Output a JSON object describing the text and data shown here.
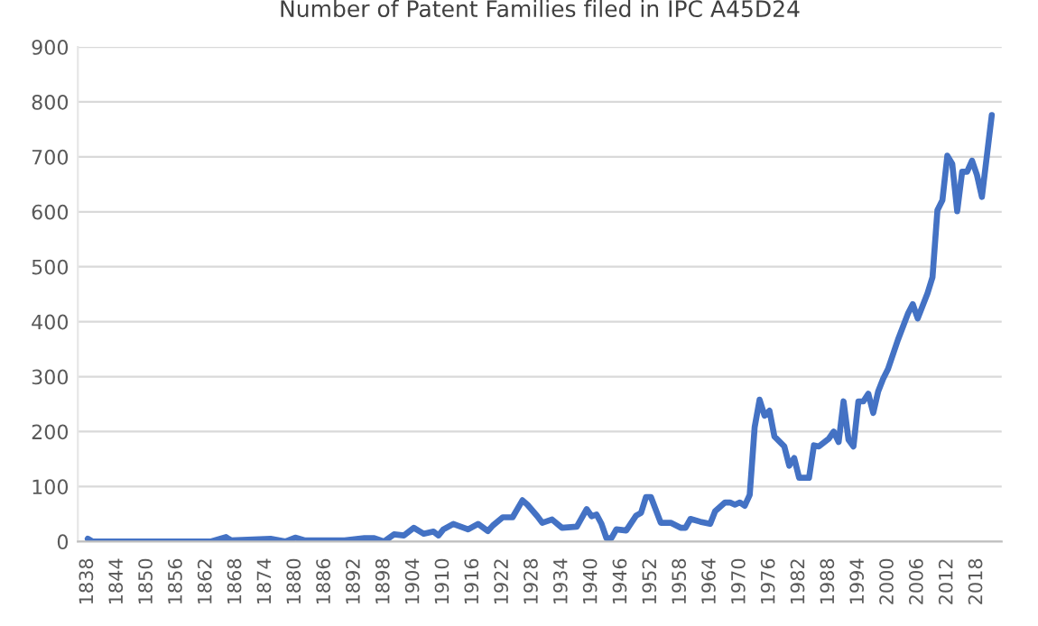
{
  "chart_data": {
    "type": "line",
    "title": "Number of Patent Families filed in IPC A45D24",
    "series": [
      {
        "color": "#4472c4",
        "x": [
          1838,
          1839,
          1863,
          1866,
          1867,
          1875,
          1878,
          1880,
          1882,
          1890,
          1894,
          1896,
          1898,
          1900,
          1902,
          1904,
          1906,
          1908,
          1909,
          1910,
          1912,
          1915,
          1917,
          1919,
          1920,
          1922,
          1924,
          1926,
          1927,
          1929,
          1930,
          1932,
          1934,
          1937,
          1939,
          1940,
          1941,
          1942,
          1943,
          1944,
          1945,
          1947,
          1949,
          1950,
          1951,
          1952,
          1954,
          1956,
          1958,
          1959,
          1960,
          1962,
          1964,
          1965,
          1967,
          1968,
          1969,
          1970,
          1971,
          1972,
          1973,
          1974,
          1975,
          1976,
          1977,
          1979,
          1980,
          1981,
          1982,
          1984,
          1985,
          1986,
          1988,
          1989,
          1990,
          1991,
          1992,
          1993,
          1994,
          1995,
          1996,
          1997,
          1998,
          1999,
          2000,
          2002,
          2004,
          2005,
          2006,
          2008,
          2009,
          2010,
          2011,
          2012,
          2013,
          2014,
          2015,
          2016,
          2017,
          2018,
          2019,
          2021
        ],
        "values": [
          5,
          0,
          0,
          8,
          2,
          5,
          0,
          7,
          2,
          2,
          6,
          6,
          0,
          13,
          11,
          25,
          14,
          18,
          11,
          22,
          32,
          22,
          32,
          19,
          29,
          44,
          44,
          75,
          67,
          46,
          34,
          40,
          25,
          27,
          59,
          46,
          49,
          32,
          6,
          6,
          22,
          20,
          47,
          52,
          81,
          81,
          34,
          34,
          25,
          25,
          41,
          36,
          32,
          55,
          71,
          71,
          67,
          71,
          65,
          85,
          208,
          258,
          229,
          238,
          191,
          173,
          138,
          152,
          116,
          116,
          175,
          173,
          187,
          200,
          181,
          255,
          185,
          173,
          255,
          255,
          269,
          234,
          273,
          296,
          314,
          367,
          414,
          432,
          406,
          452,
          481,
          603,
          621,
          702,
          687,
          601,
          673,
          673,
          693,
          667,
          627,
          776
        ]
      }
    ],
    "xlim": [
      1836,
      2023
    ],
    "xticks": [
      1838,
      1844,
      1850,
      1856,
      1862,
      1868,
      1874,
      1880,
      1886,
      1892,
      1898,
      1904,
      1910,
      1916,
      1922,
      1928,
      1934,
      1940,
      1946,
      1952,
      1958,
      1964,
      1970,
      1976,
      1982,
      1988,
      1994,
      2000,
      2006,
      2012,
      2018
    ],
    "ylim": [
      0,
      900
    ],
    "yticks": [
      0,
      100,
      200,
      300,
      400,
      500,
      600,
      700,
      800,
      900
    ],
    "grid": "y",
    "marker": "none",
    "line_style": "solid"
  }
}
